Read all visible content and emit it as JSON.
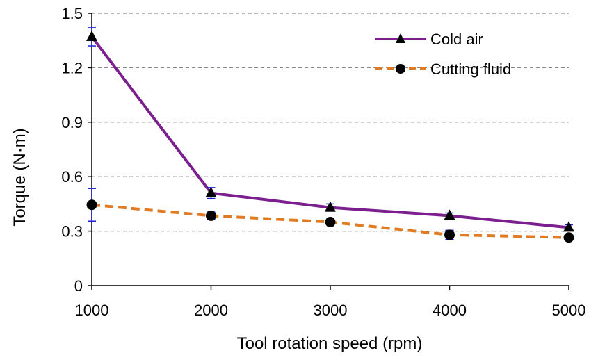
{
  "chart_data": {
    "type": "line",
    "x": [
      1000,
      2000,
      3000,
      4000,
      5000
    ],
    "xlabel": "Tool rotation speed (rpm)",
    "ylabel": "Torque (N·m)",
    "xlim": [
      1000,
      5000
    ],
    "ylim": [
      0,
      1.5
    ],
    "xticks": [
      "1000",
      "2000",
      "3000",
      "4000",
      "5000"
    ],
    "yticks": [
      "0",
      "0.3",
      "0.6",
      "0.9",
      "1.2",
      "1.5"
    ],
    "grid": "horizontal dashed",
    "legend_position": "top-right",
    "series": [
      {
        "name": "Cold air",
        "values": [
          1.37,
          0.51,
          0.43,
          0.385,
          0.32
        ],
        "error": [
          0.05,
          0.03,
          0.02,
          0.015,
          0.015
        ],
        "color": "#7B1E8E",
        "marker": "triangle",
        "line_style": "solid"
      },
      {
        "name": "Cutting fluid",
        "values": [
          0.445,
          0.385,
          0.35,
          0.28,
          0.265
        ],
        "error": [
          0.09,
          0.02,
          0.015,
          0.025,
          0.01
        ],
        "color": "#E07B24",
        "marker": "circle",
        "line_style": "dashed"
      }
    ],
    "error_bar_color": "#1F1FD6"
  }
}
